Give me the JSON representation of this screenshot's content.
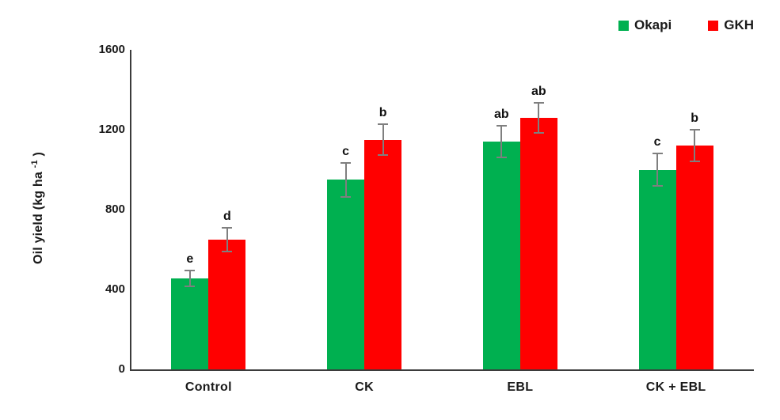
{
  "chart_data": {
    "type": "bar",
    "title": "",
    "categories": [
      "Control",
      "CK",
      "EBL",
      "CK + EBL"
    ],
    "series": [
      {
        "name": "Okapi",
        "color": "#00B050",
        "values": [
          455,
          950,
          1140,
          1000
        ],
        "errors": [
          40,
          85,
          80,
          80
        ],
        "letters": [
          "e",
          "c",
          "ab",
          "c"
        ]
      },
      {
        "name": "GKH",
        "color": "#FF0000",
        "values": [
          650,
          1150,
          1260,
          1120
        ],
        "errors": [
          58,
          78,
          76,
          80
        ],
        "letters": [
          "d",
          "b",
          "ab",
          "b"
        ]
      }
    ],
    "xlabel": "",
    "ylabel": "Oil yield (kg ha⁻¹)",
    "ylabel_parts": {
      "pre": "Oil yield (kg ha ",
      "sup": "-1",
      "post": " )"
    },
    "ylim": [
      0,
      1600
    ],
    "yticks": [
      0,
      400,
      800,
      1200,
      1600
    ],
    "grid": false,
    "legend_position": "top-right",
    "colors": {
      "okapi": "#00B050",
      "gkh": "#FF0000",
      "error_bar": "#7F7F7F",
      "axis": "#3B3B3B",
      "text": "#1A1A1A",
      "background": "#FFFFFF"
    }
  }
}
